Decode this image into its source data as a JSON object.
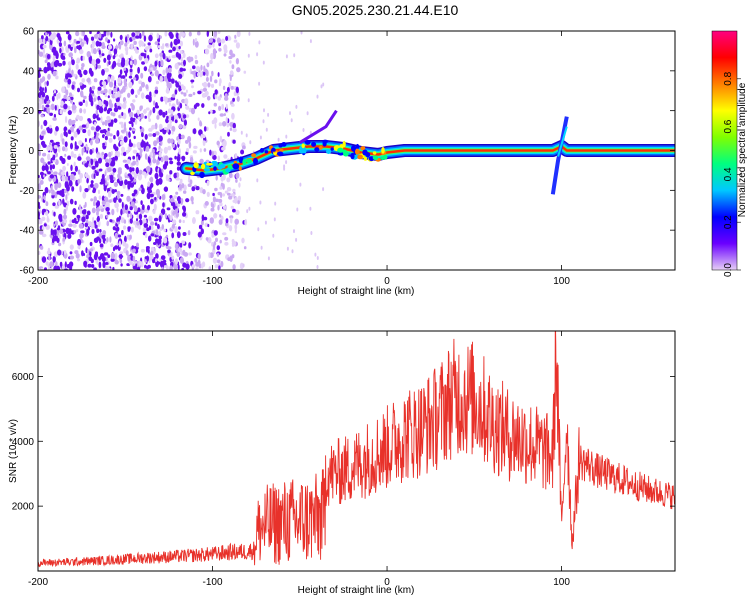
{
  "title": "GN05.2025.230.21.44.E10",
  "chart_data": [
    {
      "type": "heatmap",
      "xlabel": "Height of straight line (km)",
      "ylabel": "Frequency (Hz)",
      "xlim": [
        -200,
        165
      ],
      "ylim": [
        -60,
        60
      ],
      "xticks": [
        -200,
        -100,
        0,
        100
      ],
      "yticks": [
        -60,
        -40,
        -20,
        0,
        20,
        40,
        60
      ],
      "colorbar": {
        "label": "Normalized spectral amplitude",
        "range": [
          0,
          1
        ],
        "ticks": [
          0.0,
          0.2,
          0.4,
          0.6,
          0.8
        ],
        "colormap": [
          "#e6d0f5",
          "#6a00ff",
          "#0000ff",
          "#00c8ff",
          "#00ff80",
          "#80ff00",
          "#ffff00",
          "#ff8000",
          "#ff0000",
          "#ff0080"
        ]
      },
      "ridge": {
        "x": [
          -115,
          -105,
          -95,
          -85,
          -75,
          -65,
          -55,
          -45,
          -35,
          -25,
          -15,
          -5,
          0,
          10,
          30,
          50,
          70,
          90,
          95,
          100,
          103,
          110,
          130,
          165
        ],
        "y": [
          -9,
          -10,
          -9,
          -7,
          -4,
          0,
          1,
          2,
          2,
          1,
          -1,
          -2,
          -1,
          0,
          0,
          0,
          0,
          0,
          0,
          2,
          0,
          0,
          0,
          0
        ]
      },
      "grid": false
    },
    {
      "type": "line",
      "xlabel": "Height of straight line (km)",
      "ylabel": "SNR (10 * v/v)",
      "xlim": [
        -200,
        165
      ],
      "ylim": [
        0,
        7400
      ],
      "xticks": [
        -200,
        -100,
        0,
        100
      ],
      "yticks": [
        2000,
        4000,
        6000
      ],
      "series_color": "#e8312a",
      "series": [
        {
          "x": [
            -200,
            -180,
            -160,
            -140,
            -120,
            -100,
            -90,
            -80,
            -76,
            -75,
            -70,
            -60,
            -50,
            -40,
            -36,
            -35,
            -30,
            -20,
            -10,
            0,
            10,
            20,
            30,
            35,
            40,
            50,
            55,
            60,
            70,
            80,
            90,
            95,
            97,
            100,
            103,
            106,
            110,
            115,
            120,
            130,
            140,
            150,
            165
          ],
          "y": [
            250,
            280,
            330,
            400,
            450,
            520,
            580,
            600,
            650,
            1200,
            1400,
            1500,
            1550,
            1600,
            1700,
            3000,
            3000,
            3200,
            3500,
            3800,
            4200,
            4400,
            4800,
            5200,
            5400,
            5300,
            5000,
            4600,
            4200,
            4000,
            3700,
            3500,
            7000,
            1200,
            4800,
            800,
            3400,
            3300,
            3100,
            2900,
            2700,
            2500,
            2300
          ]
        }
      ],
      "grid": false
    }
  ]
}
